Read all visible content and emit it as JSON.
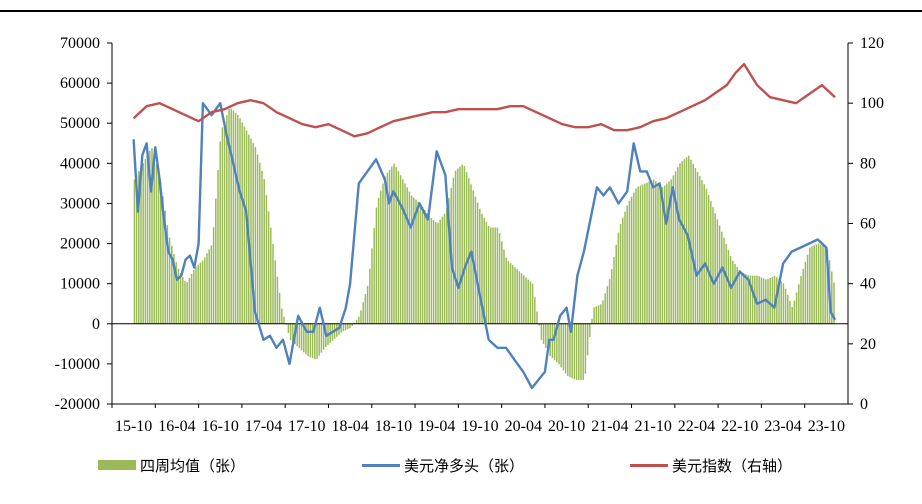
{
  "chart_data": {
    "type": "bar+line",
    "categories": [
      "15-10",
      "16-04",
      "16-10",
      "17-04",
      "17-10",
      "18-04",
      "18-10",
      "19-04",
      "19-10",
      "20-04",
      "20-10",
      "21-04",
      "21-10",
      "22-04",
      "22-10",
      "23-04",
      "23-10"
    ],
    "left_axis": {
      "ylim": [
        -20000,
        70000
      ],
      "ticks": [
        "70000",
        "60000",
        "50000",
        "40000",
        "30000",
        "20000",
        "10000",
        "0",
        "-10000",
        "-20000"
      ]
    },
    "right_axis": {
      "ylim": [
        0,
        120
      ],
      "ticks": [
        "120",
        "100",
        "80",
        "60",
        "40",
        "20",
        "0"
      ]
    },
    "series": [
      {
        "name": "四周均值（张）",
        "kind": "bar",
        "axis": "left",
        "color": "#9BBB59",
        "x": [
          0,
          0.2,
          0.4,
          0.6,
          0.8,
          1,
          1.2,
          1.4,
          1.6,
          1.8,
          2,
          2.2,
          2.4,
          2.6,
          2.8,
          3,
          3.2,
          3.4,
          3.6,
          3.8,
          4,
          4.2,
          4.4,
          4.6,
          4.8,
          5,
          5.2,
          5.4,
          5.6,
          5.8,
          6,
          6.2,
          6.4,
          6.6,
          6.8,
          7,
          7.2,
          7.4,
          7.6,
          7.8,
          8,
          8.2,
          8.4,
          8.6,
          8.8,
          9,
          9.2,
          9.4,
          9.6,
          9.8,
          10,
          10.2,
          10.4,
          10.6,
          10.8,
          11,
          11.2,
          11.4,
          11.6,
          11.8,
          12,
          12.2,
          12.4,
          12.6,
          12.8,
          13,
          13.2,
          13.4,
          13.6,
          13.8,
          14,
          14.2,
          14.4,
          14.6,
          14.8,
          15,
          15.2,
          15.4,
          15.6,
          15.8,
          16,
          16.2
        ],
        "values": [
          36000,
          40000,
          44000,
          36000,
          22000,
          14000,
          10000,
          14000,
          16000,
          20000,
          48000,
          54000,
          52000,
          48000,
          44000,
          36000,
          20000,
          4000,
          -4000,
          -6000,
          -8000,
          -9000,
          -6000,
          -4000,
          -2000,
          -1000,
          2000,
          10000,
          30000,
          37000,
          40000,
          36000,
          32000,
          30000,
          27000,
          25000,
          28000,
          38000,
          40000,
          34000,
          28000,
          24000,
          24000,
          16000,
          14000,
          12000,
          10000,
          -4000,
          -8000,
          -10000,
          -13000,
          -14000,
          -14000,
          4000,
          5000,
          12000,
          24000,
          30000,
          34000,
          35000,
          36000,
          34000,
          36000,
          40000,
          42000,
          38000,
          34000,
          28000,
          22000,
          16000,
          13000,
          12000,
          12000,
          11000,
          12000,
          10000,
          4000,
          12000,
          19000,
          20000,
          19000,
          8000
        ]
      },
      {
        "name": "美元净多头（张）",
        "kind": "line",
        "axis": "left",
        "color": "#4F81BD",
        "x": [
          0,
          0.1,
          0.2,
          0.3,
          0.4,
          0.5,
          0.6,
          0.7,
          0.8,
          0.9,
          1,
          1.1,
          1.2,
          1.3,
          1.4,
          1.5,
          1.6,
          1.8,
          2,
          2.15,
          2.3,
          2.45,
          2.6,
          2.8,
          3,
          3.15,
          3.3,
          3.45,
          3.6,
          3.8,
          4,
          4.15,
          4.3,
          4.45,
          4.6,
          4.75,
          4.9,
          5,
          5.2,
          5.4,
          5.6,
          5.8,
          5.9,
          6,
          6.2,
          6.4,
          6.6,
          6.8,
          7,
          7.2,
          7.35,
          7.5,
          7.65,
          7.8,
          8,
          8.2,
          8.4,
          8.6,
          8.8,
          9,
          9.1,
          9.2,
          9.35,
          9.5,
          9.6,
          9.7,
          9.85,
          10,
          10.1,
          10.25,
          10.4,
          10.55,
          10.7,
          10.85,
          11,
          11.2,
          11.4,
          11.55,
          11.7,
          11.85,
          12,
          12.15,
          12.3,
          12.45,
          12.6,
          12.8,
          13,
          13.2,
          13.4,
          13.6,
          13.8,
          14,
          14.2,
          14.4,
          14.6,
          14.8,
          15,
          15.2,
          15.4,
          15.6,
          15.8,
          16,
          16.1,
          16.2
        ],
        "values": [
          46000,
          28000,
          42000,
          45000,
          33000,
          44000,
          36000,
          26000,
          18000,
          16000,
          11000,
          12000,
          16000,
          17000,
          14000,
          20000,
          55000,
          52000,
          55000,
          47000,
          40000,
          33000,
          28000,
          3000,
          -4000,
          -3000,
          -6000,
          -4000,
          -10000,
          2000,
          -2000,
          -2000,
          4000,
          -3000,
          -2000,
          -1000,
          4000,
          10000,
          35000,
          38000,
          41000,
          36000,
          30000,
          33000,
          29000,
          24000,
          30000,
          26000,
          43000,
          37000,
          14000,
          9000,
          14000,
          18000,
          7000,
          -4000,
          -6000,
          -6000,
          -9000,
          -12000,
          -14000,
          -16000,
          -14000,
          -12000,
          -4000,
          -4000,
          2000,
          4000,
          -2000,
          12000,
          18000,
          26000,
          34000,
          32000,
          34000,
          30000,
          33000,
          45000,
          38000,
          38000,
          34000,
          35000,
          25000,
          34000,
          26000,
          22000,
          12000,
          15000,
          10000,
          14000,
          9000,
          13000,
          11000,
          5000,
          6000,
          4000,
          15000,
          18000,
          19000,
          20000,
          21000,
          19000,
          3000,
          1000
        ]
      },
      {
        "name": "美元指数（右轴）",
        "kind": "line",
        "axis": "right",
        "color": "#C0504D",
        "x": [
          0,
          0.3,
          0.6,
          0.9,
          1.2,
          1.5,
          1.8,
          2.1,
          2.4,
          2.7,
          3,
          3.3,
          3.6,
          3.9,
          4.2,
          4.5,
          4.8,
          5.1,
          5.4,
          5.7,
          6,
          6.3,
          6.6,
          6.9,
          7.2,
          7.5,
          7.8,
          8.1,
          8.4,
          8.7,
          9,
          9.3,
          9.6,
          9.9,
          10.2,
          10.5,
          10.8,
          11.1,
          11.4,
          11.7,
          12,
          12.3,
          12.6,
          12.9,
          13.2,
          13.5,
          13.7,
          13.9,
          14.1,
          14.4,
          14.7,
          15,
          15.3,
          15.6,
          15.9,
          16.2
        ],
        "values": [
          95,
          99,
          100,
          98,
          96,
          94,
          97,
          98,
          100,
          101,
          100,
          97,
          95,
          93,
          92,
          93,
          91,
          89,
          90,
          92,
          94,
          95,
          96,
          97,
          97,
          98,
          98,
          98,
          98,
          99,
          99,
          97,
          95,
          93,
          92,
          92,
          93,
          91,
          91,
          92,
          94,
          95,
          97,
          99,
          101,
          104,
          106,
          110,
          113,
          106,
          102,
          101,
          100,
          103,
          106,
          102
        ]
      }
    ]
  },
  "legend": {
    "bar_label": "四周均值（张）",
    "net_label": "美元净多头（张）",
    "dxy_label": "美元指数（右轴）"
  }
}
